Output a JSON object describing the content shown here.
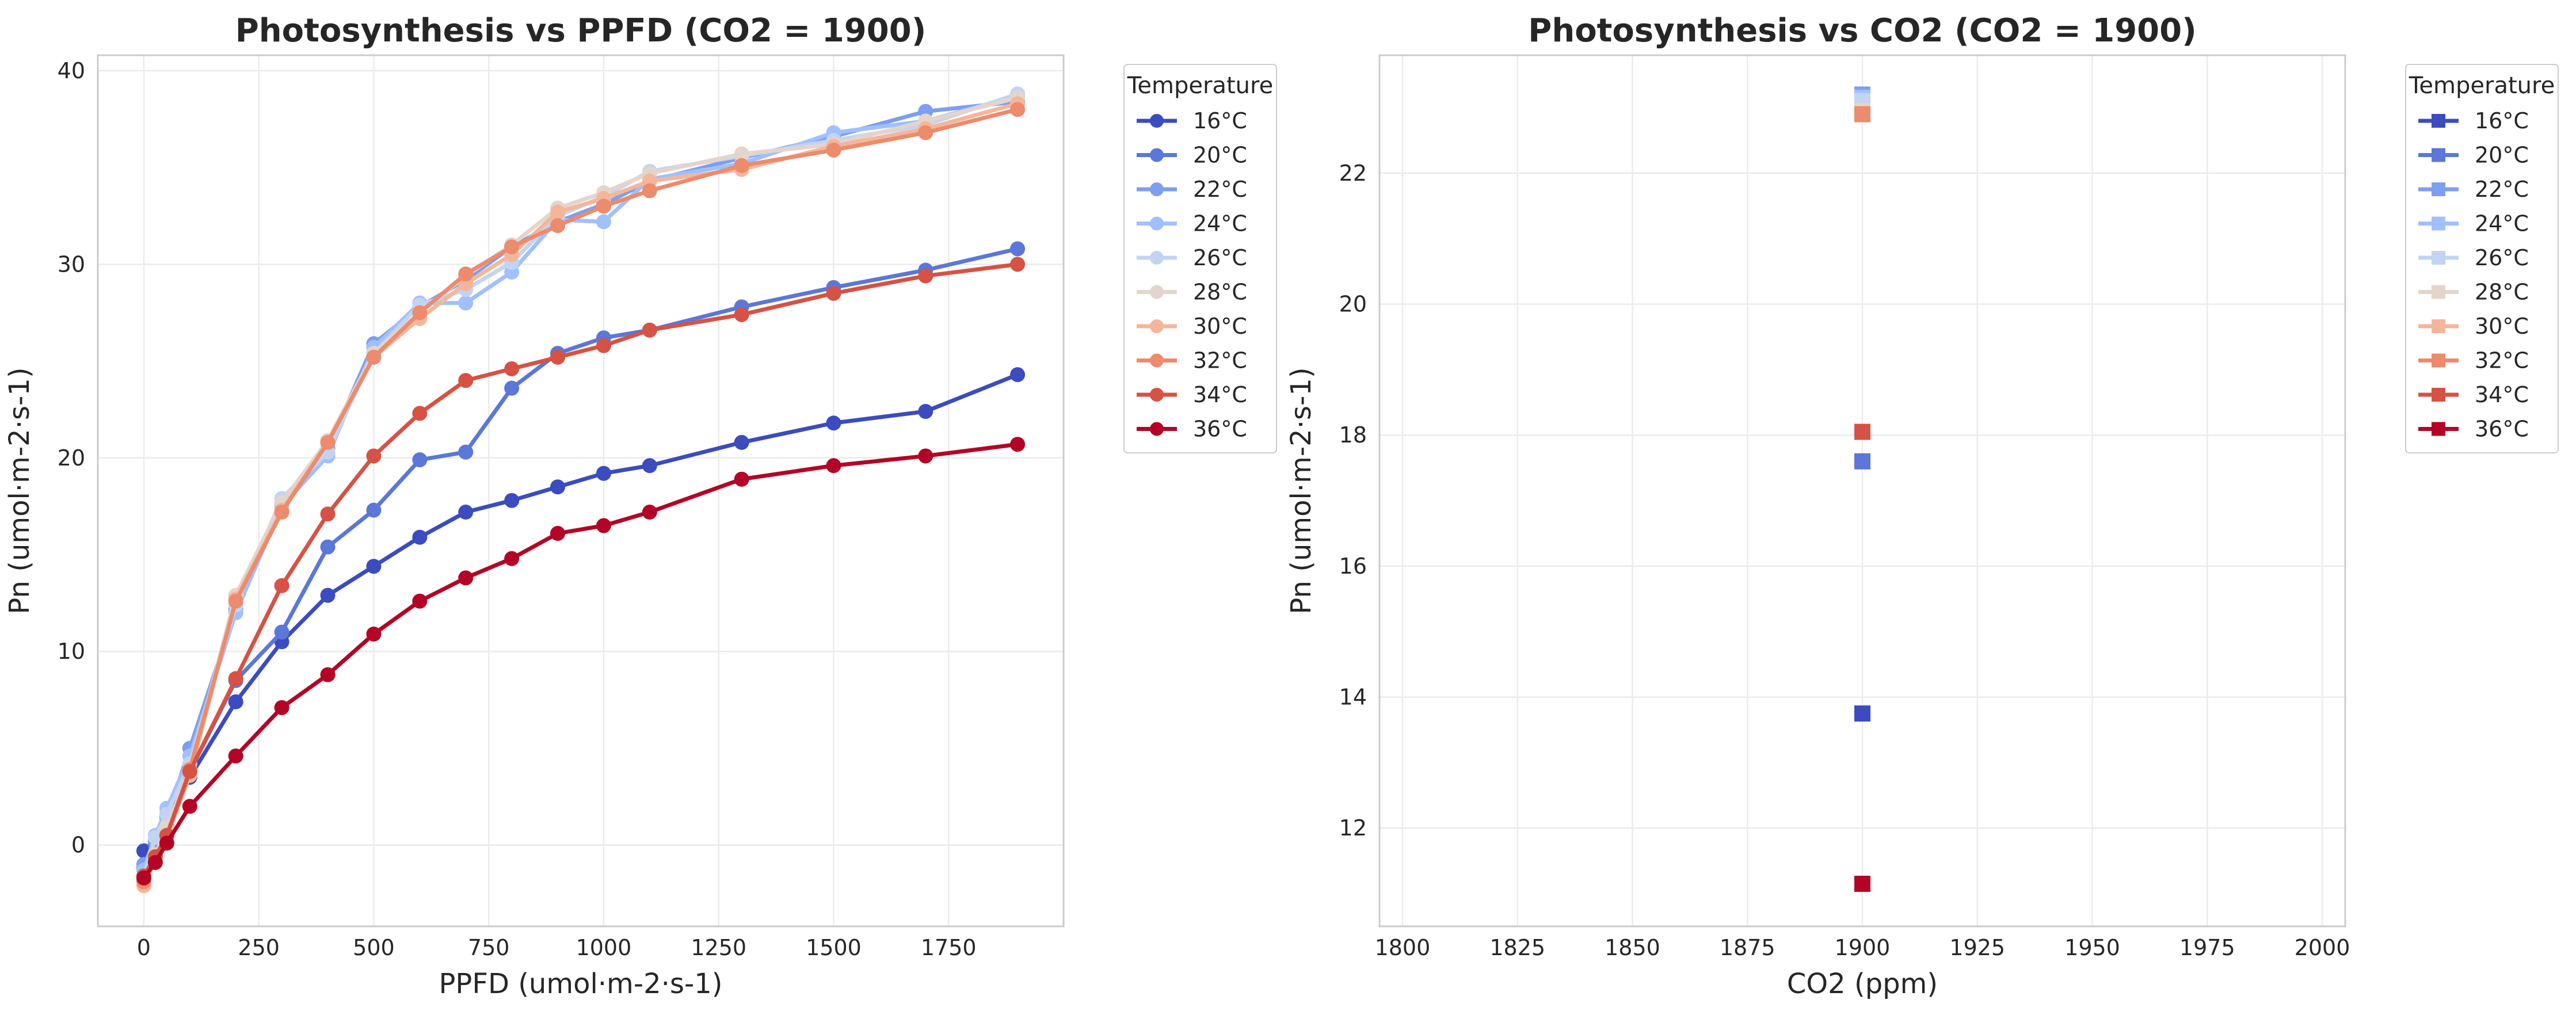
{
  "chart_data": [
    {
      "type": "line",
      "title": "Photosynthesis vs PPFD (CO2 = 1900)",
      "xlabel": "PPFD (umol·m-2·s-1)",
      "ylabel": "Pn (umol·m-2·s-1)",
      "xlim": [
        -100,
        2000
      ],
      "ylim": [
        -4.2,
        40.8
      ],
      "xticks": [
        0,
        250,
        500,
        750,
        1000,
        1250,
        1500,
        1750
      ],
      "yticks": [
        0,
        10,
        20,
        30,
        40
      ],
      "grid": true,
      "legend": {
        "title": "Temperature",
        "placement": "outside top-right"
      },
      "x": [
        0,
        25,
        50,
        100,
        200,
        300,
        400,
        500,
        600,
        700,
        800,
        900,
        1000,
        1100,
        1300,
        1500,
        1700,
        1900
      ],
      "series": [
        {
          "name": "16°C",
          "color": "#3b4cc0",
          "values": [
            -0.3,
            0.0,
            1.0,
            3.5,
            7.4,
            10.5,
            12.9,
            14.4,
            15.9,
            17.2,
            17.8,
            18.5,
            19.2,
            19.6,
            20.8,
            21.8,
            22.4,
            24.3
          ]
        },
        {
          "name": "20°C",
          "color": "#5a77d9",
          "values": [
            -1.2,
            0.0,
            1.5,
            3.8,
            8.5,
            11.0,
            15.4,
            17.3,
            19.9,
            20.3,
            23.6,
            25.4,
            26.2,
            26.6,
            27.8,
            28.8,
            29.7,
            30.8
          ]
        },
        {
          "name": "22°C",
          "color": "#7d9ff0",
          "values": [
            -1.0,
            0.2,
            1.4,
            5.0,
            12.2,
            17.6,
            20.5,
            25.9,
            27.8,
            29.2,
            30.9,
            32.2,
            33.1,
            34.3,
            35.5,
            36.6,
            37.9,
            38.4
          ]
        },
        {
          "name": "24°C",
          "color": "#a0c0ff",
          "values": [
            -1.3,
            0.5,
            1.9,
            4.6,
            12.0,
            17.5,
            20.1,
            25.7,
            28.0,
            28.0,
            29.6,
            32.3,
            32.2,
            34.4,
            35.2,
            36.8,
            37.4,
            38.7
          ]
        },
        {
          "name": "26°C",
          "color": "#c3d4f2",
          "values": [
            -1.6,
            0.4,
            1.6,
            4.2,
            12.4,
            17.9,
            20.3,
            25.4,
            27.9,
            28.7,
            30.1,
            32.5,
            33.5,
            34.8,
            35.6,
            36.4,
            37.2,
            38.8
          ]
        },
        {
          "name": "28°C",
          "color": "#e3d5cb",
          "values": [
            -1.8,
            -0.5,
            0.9,
            3.9,
            12.9,
            17.7,
            20.9,
            25.4,
            27.5,
            29.4,
            31.0,
            32.9,
            33.7,
            34.7,
            35.7,
            36.2,
            37.4,
            38.6
          ]
        },
        {
          "name": "30°C",
          "color": "#f4b69b",
          "values": [
            -2.1,
            -0.8,
            0.4,
            3.6,
            12.7,
            17.3,
            20.8,
            25.2,
            27.2,
            29.0,
            30.5,
            32.7,
            33.4,
            34.3,
            34.9,
            36.1,
            37.0,
            38.3
          ]
        },
        {
          "name": "32°C",
          "color": "#ec8b6d",
          "values": [
            -1.9,
            -0.8,
            0.5,
            3.9,
            12.6,
            17.2,
            20.8,
            25.2,
            27.5,
            29.5,
            30.9,
            32.0,
            33.0,
            33.8,
            35.1,
            35.9,
            36.8,
            38.0
          ]
        },
        {
          "name": "34°C",
          "color": "#d65244",
          "values": [
            -1.6,
            -0.6,
            0.5,
            3.8,
            8.6,
            13.4,
            17.1,
            20.1,
            22.3,
            24.0,
            24.6,
            25.2,
            25.8,
            26.6,
            27.4,
            28.5,
            29.4,
            30.0
          ]
        },
        {
          "name": "36°C",
          "color": "#b40426",
          "values": [
            -1.7,
            -0.9,
            0.1,
            2.0,
            4.6,
            7.1,
            8.8,
            10.9,
            12.6,
            13.8,
            14.8,
            16.1,
            16.5,
            17.2,
            18.9,
            19.6,
            20.1,
            20.7
          ]
        }
      ]
    },
    {
      "type": "scatter",
      "title": "Photosynthesis vs CO2 (CO2 = 1900)",
      "xlabel": "CO2 (ppm)",
      "ylabel": "Pn (umol·m-2·s-1)",
      "xlim": [
        1795,
        2005
      ],
      "ylim": [
        10.5,
        23.8
      ],
      "xticks": [
        1800,
        1825,
        1850,
        1875,
        1900,
        1925,
        1950,
        1975,
        2000
      ],
      "yticks": [
        12,
        14,
        16,
        18,
        20,
        22
      ],
      "grid": true,
      "legend": {
        "title": "Temperature",
        "placement": "outside top-right"
      },
      "series": [
        {
          "name": "16°C",
          "color": "#3b4cc0",
          "x": [
            1900
          ],
          "y": [
            13.75
          ]
        },
        {
          "name": "20°C",
          "color": "#5a77d9",
          "x": [
            1900
          ],
          "y": [
            17.6
          ]
        },
        {
          "name": "22°C",
          "color": "#7d9ff0",
          "x": [
            1900
          ],
          "y": [
            23.2
          ]
        },
        {
          "name": "24°C",
          "color": "#a0c0ff",
          "x": [
            1900
          ],
          "y": [
            23.15
          ]
        },
        {
          "name": "26°C",
          "color": "#c3d4f2",
          "x": [
            1900
          ],
          "y": [
            23.1
          ]
        },
        {
          "name": "28°C",
          "color": "#e3d5cb",
          "x": [
            1900
          ],
          "y": [
            22.95
          ]
        },
        {
          "name": "30°C",
          "color": "#f4b69b",
          "x": [
            1900
          ],
          "y": [
            22.9
          ]
        },
        {
          "name": "32°C",
          "color": "#ec8b6d",
          "x": [
            1900
          ],
          "y": [
            22.9
          ]
        },
        {
          "name": "34°C",
          "color": "#d65244",
          "x": [
            1900
          ],
          "y": [
            18.05
          ]
        },
        {
          "name": "36°C",
          "color": "#b40426",
          "x": [
            1900
          ],
          "y": [
            11.15
          ]
        }
      ]
    }
  ],
  "colors": {
    "grid": "#ebebeb",
    "axes_edge": "#cccccc",
    "text": "#262626"
  }
}
